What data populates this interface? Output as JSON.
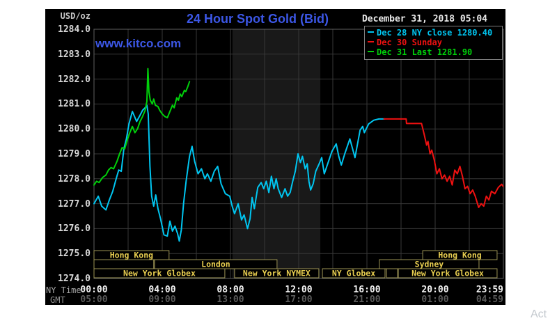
{
  "page": {
    "watermark_partial": "Act"
  },
  "chart": {
    "title": "24 Hour Spot Gold (Bid)",
    "title_color": "#3c57e6",
    "site": "www.kitco.com",
    "datetime": "December 31, 2018 05:04",
    "unit_label": "USD/oz",
    "ny_time_label": "NY Time",
    "gmt_label": "GMT",
    "legend": {
      "items": [
        {
          "label": "Dec 28 NY close 1280.40",
          "color": "#00c5f0"
        },
        {
          "label": "Dec 30 Sunday",
          "color": "#ee1111"
        },
        {
          "label": "Dec 31 Last 1281.90",
          "color": "#00d00a"
        }
      ]
    }
  },
  "chart_data": {
    "type": "line",
    "title": "24 Hour Spot Gold (Bid)",
    "ylabel": "USD/oz",
    "ylim": [
      1274.0,
      1284.0
    ],
    "xlim_hours": [
      0,
      24
    ],
    "grid": true,
    "background": "#000000",
    "grid_color": "#383838",
    "border_color": "#606060",
    "highlight_band_hours": [
      8.12,
      13.27
    ],
    "highlight_band_color": "#191919",
    "yticks": [
      "1284.0",
      "1283.0",
      "1282.0",
      "1281.0",
      "1280.0",
      "1279.0",
      "1278.0",
      "1277.0",
      "1276.0",
      "1275.0",
      "1274.0"
    ],
    "xticks": [
      {
        "hour": 0,
        "ny": "00:00",
        "gmt": "05:00"
      },
      {
        "hour": 4,
        "ny": "04:00",
        "gmt": "09:00"
      },
      {
        "hour": 8,
        "ny": "08:00",
        "gmt": "13:00"
      },
      {
        "hour": 12,
        "ny": "12:00",
        "gmt": "17:00"
      },
      {
        "hour": 16,
        "ny": "16:00",
        "gmt": "21:00"
      },
      {
        "hour": 20,
        "ny": "20:00",
        "gmt": "01:00"
      },
      {
        "hour": 24,
        "ny": "23:59",
        "gmt": "04:59"
      }
    ],
    "sessions": {
      "box_border": "#9d9455",
      "label_color": "#e8ce50",
      "rows": [
        {
          "row": 1,
          "label": "Hong Kong",
          "start": 0.0,
          "end": 4.4
        },
        {
          "row": 1,
          "label": "Hong Kong",
          "start": 19.27,
          "end": 23.63
        },
        {
          "row": 2,
          "label": "",
          "start": 0.0,
          "end": 3.5
        },
        {
          "row": 2,
          "label": "London",
          "start": 3.55,
          "end": 10.73
        },
        {
          "row": 2,
          "label": "Sydney",
          "start": 16.73,
          "end": 22.57
        },
        {
          "row": 3,
          "label": "New York Globex",
          "start": 0.0,
          "end": 7.67
        },
        {
          "row": 3,
          "label": "New York NYMEX",
          "start": 8.24,
          "end": 13.18
        },
        {
          "row": 3,
          "label": "NY Globex",
          "start": 13.39,
          "end": 17.06
        },
        {
          "row": 3,
          "label": "",
          "start": 17.15,
          "end": 17.8
        },
        {
          "row": 3,
          "label": "New York Globex",
          "start": 17.84,
          "end": 23.63
        }
      ]
    },
    "series": [
      {
        "name": "Dec 28 NY close 1280.40",
        "color": "#00c5f0",
        "points": [
          [
            0,
            1277.0
          ],
          [
            0.25,
            1277.3
          ],
          [
            0.45,
            1276.9
          ],
          [
            0.7,
            1276.75
          ],
          [
            0.9,
            1277.15
          ],
          [
            1.1,
            1277.5
          ],
          [
            1.3,
            1278.0
          ],
          [
            1.45,
            1278.35
          ],
          [
            1.6,
            1278.3
          ],
          [
            1.75,
            1279.2
          ],
          [
            1.9,
            1279.6
          ],
          [
            2.05,
            1280.2
          ],
          [
            2.25,
            1280.7
          ],
          [
            2.5,
            1280.3
          ],
          [
            2.7,
            1280.55
          ],
          [
            2.85,
            1280.75
          ],
          [
            3.0,
            1280.85
          ],
          [
            3.1,
            1280.95
          ],
          [
            3.18,
            1280.6
          ],
          [
            3.28,
            1278.5
          ],
          [
            3.38,
            1277.3
          ],
          [
            3.5,
            1276.9
          ],
          [
            3.62,
            1277.35
          ],
          [
            3.75,
            1276.8
          ],
          [
            3.9,
            1276.4
          ],
          [
            4.1,
            1275.75
          ],
          [
            4.3,
            1275.7
          ],
          [
            4.45,
            1276.3
          ],
          [
            4.6,
            1275.9
          ],
          [
            4.75,
            1276.1
          ],
          [
            4.9,
            1275.8
          ],
          [
            5.0,
            1275.5
          ],
          [
            5.12,
            1275.95
          ],
          [
            5.25,
            1277.0
          ],
          [
            5.4,
            1277.9
          ],
          [
            5.6,
            1278.9
          ],
          [
            5.75,
            1279.3
          ],
          [
            5.9,
            1278.7
          ],
          [
            6.1,
            1278.2
          ],
          [
            6.3,
            1278.4
          ],
          [
            6.5,
            1278.0
          ],
          [
            6.65,
            1278.2
          ],
          [
            6.85,
            1277.9
          ],
          [
            7.05,
            1278.3
          ],
          [
            7.25,
            1278.5
          ],
          [
            7.45,
            1277.8
          ],
          [
            7.7,
            1277.4
          ],
          [
            7.96,
            1277.3
          ],
          [
            8.1,
            1276.9
          ],
          [
            8.24,
            1276.6
          ],
          [
            8.45,
            1277.0
          ],
          [
            8.65,
            1276.35
          ],
          [
            8.8,
            1276.55
          ],
          [
            9.0,
            1276.0
          ],
          [
            9.15,
            1276.4
          ],
          [
            9.27,
            1277.25
          ],
          [
            9.4,
            1276.8
          ],
          [
            9.6,
            1277.65
          ],
          [
            9.8,
            1277.85
          ],
          [
            9.95,
            1277.6
          ],
          [
            10.1,
            1277.9
          ],
          [
            10.25,
            1277.45
          ],
          [
            10.4,
            1278.1
          ],
          [
            10.55,
            1277.6
          ],
          [
            10.68,
            1278.0
          ],
          [
            10.8,
            1277.6
          ],
          [
            11.0,
            1277.25
          ],
          [
            11.2,
            1277.6
          ],
          [
            11.35,
            1277.3
          ],
          [
            11.5,
            1277.45
          ],
          [
            11.65,
            1277.9
          ],
          [
            11.8,
            1278.3
          ],
          [
            11.96,
            1279.0
          ],
          [
            12.1,
            1278.65
          ],
          [
            12.22,
            1278.9
          ],
          [
            12.38,
            1278.4
          ],
          [
            12.5,
            1278.6
          ],
          [
            12.6,
            1277.9
          ],
          [
            12.7,
            1277.55
          ],
          [
            12.85,
            1277.8
          ],
          [
            13.0,
            1278.3
          ],
          [
            13.2,
            1278.6
          ],
          [
            13.35,
            1278.85
          ],
          [
            13.5,
            1278.2
          ],
          [
            13.7,
            1278.6
          ],
          [
            13.95,
            1279.1
          ],
          [
            14.2,
            1279.4
          ],
          [
            14.35,
            1278.9
          ],
          [
            14.5,
            1278.55
          ],
          [
            14.7,
            1279.0
          ],
          [
            15.0,
            1279.6
          ],
          [
            15.3,
            1278.85
          ],
          [
            15.6,
            1279.95
          ],
          [
            15.75,
            1280.1
          ],
          [
            15.85,
            1279.85
          ],
          [
            16.1,
            1280.2
          ],
          [
            16.4,
            1280.35
          ],
          [
            16.7,
            1280.4
          ],
          [
            17.05,
            1280.4
          ]
        ]
      },
      {
        "name": "Dec 30 Sunday",
        "color": "#ee1111",
        "points": [
          [
            17.0,
            1280.4
          ],
          [
            18.3,
            1280.4
          ],
          [
            18.32,
            1280.22
          ],
          [
            19.2,
            1280.22
          ],
          [
            19.35,
            1279.8
          ],
          [
            19.5,
            1279.35
          ],
          [
            19.58,
            1279.5
          ],
          [
            19.7,
            1279.0
          ],
          [
            19.8,
            1279.15
          ],
          [
            19.95,
            1278.75
          ],
          [
            20.1,
            1278.2
          ],
          [
            20.25,
            1278.4
          ],
          [
            20.4,
            1278.0
          ],
          [
            20.55,
            1278.15
          ],
          [
            20.7,
            1277.9
          ],
          [
            20.85,
            1278.1
          ],
          [
            21.0,
            1277.75
          ],
          [
            21.15,
            1278.35
          ],
          [
            21.3,
            1278.2
          ],
          [
            21.45,
            1278.5
          ],
          [
            21.6,
            1278.1
          ],
          [
            21.75,
            1277.6
          ],
          [
            21.9,
            1277.7
          ],
          [
            22.05,
            1277.4
          ],
          [
            22.2,
            1277.55
          ],
          [
            22.35,
            1277.3
          ],
          [
            22.55,
            1276.85
          ],
          [
            22.7,
            1277.0
          ],
          [
            22.85,
            1276.9
          ],
          [
            23.0,
            1277.3
          ],
          [
            23.15,
            1277.15
          ],
          [
            23.3,
            1277.5
          ],
          [
            23.5,
            1277.4
          ],
          [
            23.7,
            1277.65
          ],
          [
            23.9,
            1277.78
          ],
          [
            23.98,
            1277.7
          ]
        ]
      },
      {
        "name": "Dec 31 Last 1281.90",
        "color": "#00d00a",
        "points": [
          [
            0,
            1277.75
          ],
          [
            0.15,
            1277.9
          ],
          [
            0.3,
            1277.85
          ],
          [
            0.5,
            1278.05
          ],
          [
            0.7,
            1278.15
          ],
          [
            0.85,
            1278.35
          ],
          [
            1.0,
            1278.45
          ],
          [
            1.15,
            1278.4
          ],
          [
            1.35,
            1278.7
          ],
          [
            1.5,
            1279.0
          ],
          [
            1.65,
            1279.25
          ],
          [
            1.8,
            1279.2
          ],
          [
            1.95,
            1279.55
          ],
          [
            2.1,
            1279.85
          ],
          [
            2.25,
            1280.1
          ],
          [
            2.4,
            1279.85
          ],
          [
            2.55,
            1280.0
          ],
          [
            2.7,
            1280.3
          ],
          [
            2.85,
            1280.5
          ],
          [
            3.0,
            1280.75
          ],
          [
            3.1,
            1281.1
          ],
          [
            3.16,
            1282.42
          ],
          [
            3.22,
            1281.5
          ],
          [
            3.3,
            1281.15
          ],
          [
            3.42,
            1281.0
          ],
          [
            3.5,
            1281.2
          ],
          [
            3.6,
            1280.95
          ],
          [
            3.75,
            1280.9
          ],
          [
            3.85,
            1280.75
          ],
          [
            4.0,
            1280.6
          ],
          [
            4.15,
            1280.5
          ],
          [
            4.3,
            1280.45
          ],
          [
            4.45,
            1280.7
          ],
          [
            4.6,
            1280.95
          ],
          [
            4.7,
            1280.85
          ],
          [
            4.85,
            1281.25
          ],
          [
            4.95,
            1281.15
          ],
          [
            5.05,
            1281.4
          ],
          [
            5.15,
            1281.3
          ],
          [
            5.3,
            1281.55
          ],
          [
            5.38,
            1281.5
          ],
          [
            5.5,
            1281.7
          ],
          [
            5.6,
            1281.9
          ]
        ]
      }
    ]
  }
}
